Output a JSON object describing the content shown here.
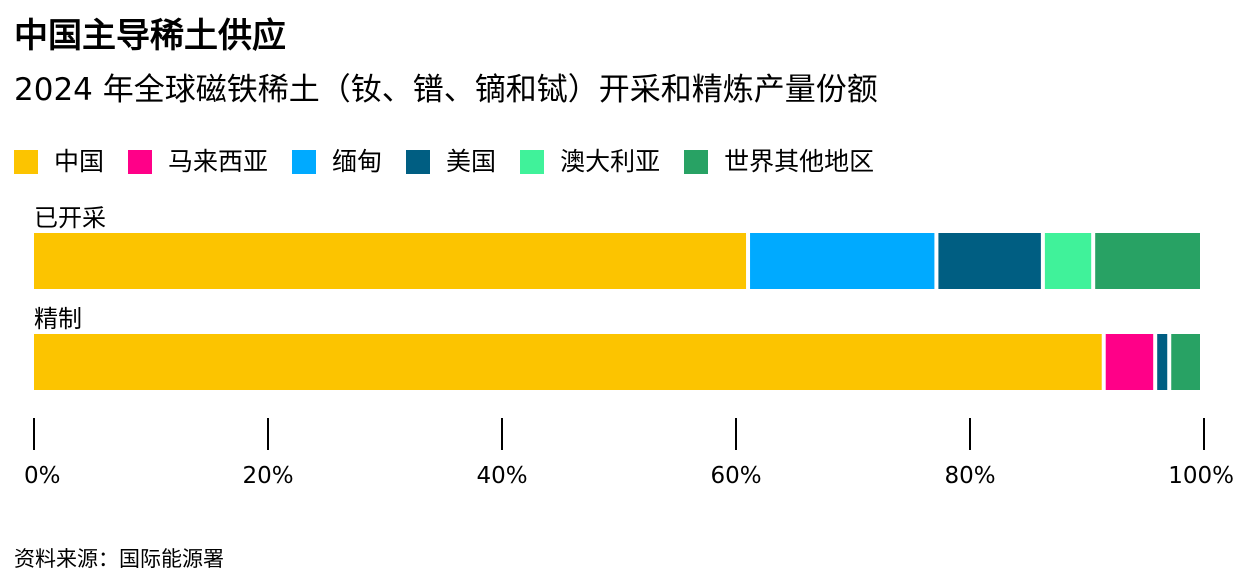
{
  "chart_data": {
    "type": "bar",
    "orientation": "horizontal",
    "stacked": true,
    "title": "中国主导稀土供应",
    "subtitle": "2024 年全球磁铁稀土（钕、镨、镝和铽）开采和精炼产量份额",
    "source": "资料来源：国际能源署",
    "categories": [
      "已开采",
      "精制"
    ],
    "series": [
      {
        "name": "中国",
        "color": "#FCC400",
        "values": [
          61.2,
          91.6
        ]
      },
      {
        "name": "马来西亚",
        "color": "#FF0088",
        "values": [
          0,
          4.4
        ]
      },
      {
        "name": "缅甸",
        "color": "#00AAFF",
        "values": [
          16.1,
          0
        ]
      },
      {
        "name": "美国",
        "color": "#005E82",
        "values": [
          9.1,
          1.2
        ]
      },
      {
        "name": "澳大利亚",
        "color": "#40F29A",
        "values": [
          4.3,
          0
        ]
      },
      {
        "name": "世界其他地区",
        "color": "#28A264",
        "values": [
          9.3,
          2.8
        ]
      }
    ],
    "xlim": [
      0,
      100
    ],
    "xticks": [
      "0%",
      "20%",
      "40%",
      "60%",
      "80%",
      "100%"
    ],
    "legend_position": "top-left",
    "grid": false
  }
}
